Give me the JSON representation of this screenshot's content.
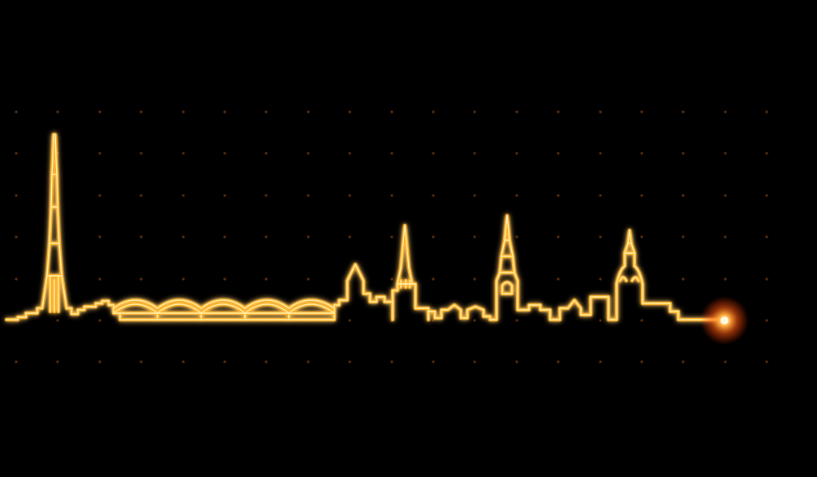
{
  "scene": {
    "subject": "neon-skyline-illustration",
    "background_color": "#000000",
    "neon_color": "#ffb020",
    "neon_core_color": "#fff2b0",
    "glow_color": "#ff6a00",
    "dot_color": "#5a2e10",
    "end_glow_color": "#ff7a20",
    "landmarks": [
      "tv-tower",
      "arched-hall",
      "gabled-church",
      "pointed-spire-church",
      "tall-spire-church",
      "domed-cathedral"
    ]
  }
}
